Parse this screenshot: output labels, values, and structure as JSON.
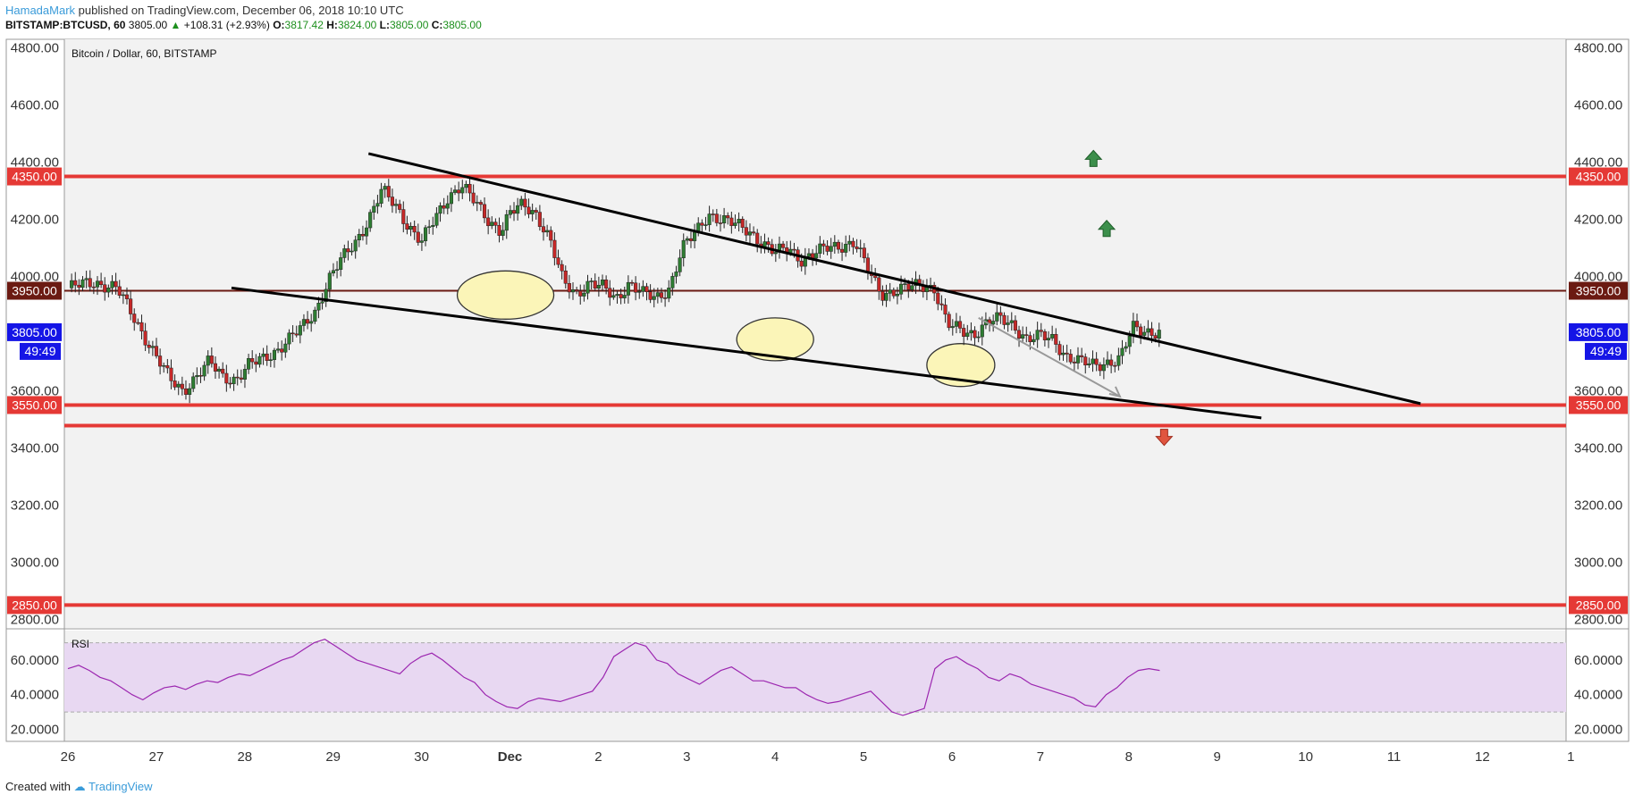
{
  "header": {
    "author": "HamadaMark",
    "published_text": "published on TradingView.com, December 06, 2018 10:10 UTC",
    "symbol": "BITSTAMP:BTCUSD, 60",
    "last": "3805.00",
    "change_arrow": "▲",
    "change": "+108.31 (+2.93%)",
    "o_label": "O:",
    "o_value": "3817.42",
    "h_label": "H:",
    "h_value": "3824.00",
    "l_label": "L:",
    "l_value": "3805.00",
    "c_label": "C:",
    "c_value": "3805.00"
  },
  "footer": {
    "created_with": "Created with",
    "brand": "TradingView"
  },
  "colors": {
    "bg": "#f2f2f2",
    "up": "#2e7d32",
    "down": "#c62828",
    "resistance": "#e53935",
    "level_3950": "#6b1a12",
    "current_price": "#1515e6",
    "rsi_line": "#9c27b0",
    "rsi_band": "#e8d8f2",
    "highlight": "#fbf5b8"
  },
  "chart_data": {
    "type": "candlestick",
    "title": "Bitcoin / Dollar, 60, BITSTAMP",
    "x_ticks": [
      "26",
      "27",
      "28",
      "29",
      "30",
      "Dec",
      "2",
      "3",
      "4",
      "5",
      "6",
      "7",
      "8",
      "9",
      "10",
      "11",
      "12",
      "1"
    ],
    "x_range_days": [
      0,
      17
    ],
    "y_ticks": [
      2800,
      3000,
      3200,
      3400,
      3600,
      3800,
      4000,
      4200,
      4400,
      4600,
      4800
    ],
    "y_tick_labels": [
      "2800.00",
      "3000.00",
      "3200.00",
      "3400.00",
      "3600.00",
      "3800.00",
      "4000.00",
      "4200.00",
      "4400.00",
      "4600.00",
      "4800.00"
    ],
    "ylim": [
      2770,
      4830
    ],
    "horizontal_levels": [
      {
        "price": 4350,
        "label": "4350.00",
        "color": "#e53935"
      },
      {
        "price": 3950,
        "label": "3950.00",
        "color": "#6b1a12"
      },
      {
        "price": 3550,
        "label": "3550.00",
        "color": "#e53935"
      },
      {
        "price": 3478,
        "label": "",
        "color": "#e53935"
      },
      {
        "price": 2850,
        "label": "2850.00",
        "color": "#e53935"
      }
    ],
    "current_price": {
      "price": 3805,
      "label": "3805.00",
      "countdown": "49:49"
    },
    "trendlines": [
      {
        "x": [
          3.4,
          15.3
        ],
        "y": [
          4430,
          3555
        ]
      },
      {
        "x": [
          1.85,
          13.5
        ],
        "y": [
          3960,
          3505
        ]
      }
    ],
    "projection_arrow": {
      "x": [
        10.3,
        11.9
      ],
      "y": [
        3855,
        3580
      ]
    },
    "highlight_ellipses": [
      {
        "x": 4.95,
        "y": 3935
      },
      {
        "x": 8.0,
        "y": 3780
      },
      {
        "x": 10.1,
        "y": 3690
      }
    ],
    "markers": [
      {
        "type": "up",
        "x": 11.6,
        "y": 4410
      },
      {
        "type": "up",
        "x": 11.75,
        "y": 4165
      },
      {
        "type": "down",
        "x": 12.4,
        "y": 3440
      }
    ],
    "close_path": [
      [
        0.0,
        3960
      ],
      [
        0.3,
        3980
      ],
      [
        0.55,
        3960
      ],
      [
        0.7,
        3880
      ],
      [
        0.85,
        3800
      ],
      [
        1.0,
        3720
      ],
      [
        1.15,
        3640
      ],
      [
        1.3,
        3600
      ],
      [
        1.45,
        3650
      ],
      [
        1.6,
        3700
      ],
      [
        1.75,
        3650
      ],
      [
        1.9,
        3640
      ],
      [
        2.05,
        3690
      ],
      [
        2.2,
        3710
      ],
      [
        2.35,
        3740
      ],
      [
        2.5,
        3780
      ],
      [
        2.65,
        3820
      ],
      [
        2.8,
        3880
      ],
      [
        2.95,
        3990
      ],
      [
        3.1,
        4060
      ],
      [
        3.25,
        4120
      ],
      [
        3.4,
        4200
      ],
      [
        3.55,
        4300
      ],
      [
        3.7,
        4250
      ],
      [
        3.85,
        4180
      ],
      [
        4.0,
        4120
      ],
      [
        4.15,
        4200
      ],
      [
        4.3,
        4280
      ],
      [
        4.45,
        4320
      ],
      [
        4.6,
        4260
      ],
      [
        4.75,
        4200
      ],
      [
        4.9,
        4160
      ],
      [
        5.0,
        4220
      ],
      [
        5.15,
        4250
      ],
      [
        5.3,
        4220
      ],
      [
        5.45,
        4130
      ],
      [
        5.6,
        3980
      ],
      [
        5.75,
        3940
      ],
      [
        5.9,
        3980
      ],
      [
        6.05,
        3960
      ],
      [
        6.2,
        3920
      ],
      [
        6.35,
        3980
      ],
      [
        6.5,
        3940
      ],
      [
        6.65,
        3920
      ],
      [
        6.8,
        3960
      ],
      [
        6.95,
        4100
      ],
      [
        7.1,
        4150
      ],
      [
        7.25,
        4220
      ],
      [
        7.4,
        4200
      ],
      [
        7.55,
        4180
      ],
      [
        7.7,
        4160
      ],
      [
        7.85,
        4120
      ],
      [
        8.0,
        4080
      ],
      [
        8.15,
        4100
      ],
      [
        8.3,
        4060
      ],
      [
        8.45,
        4080
      ],
      [
        8.6,
        4100
      ],
      [
        8.75,
        4110
      ],
      [
        8.9,
        4120
      ],
      [
        9.05,
        4020
      ],
      [
        9.2,
        3940
      ],
      [
        9.35,
        3950
      ],
      [
        9.5,
        3960
      ],
      [
        9.65,
        3970
      ],
      [
        9.8,
        3960
      ],
      [
        9.95,
        3830
      ],
      [
        10.1,
        3810
      ],
      [
        10.25,
        3800
      ],
      [
        10.4,
        3840
      ],
      [
        10.55,
        3850
      ],
      [
        10.7,
        3830
      ],
      [
        10.85,
        3780
      ],
      [
        11.0,
        3790
      ],
      [
        11.15,
        3780
      ],
      [
        11.3,
        3720
      ],
      [
        11.45,
        3700
      ],
      [
        11.6,
        3690
      ],
      [
        11.75,
        3700
      ],
      [
        11.9,
        3710
      ],
      [
        12.05,
        3820
      ],
      [
        12.2,
        3810
      ],
      [
        12.35,
        3805
      ]
    ],
    "rsi": {
      "label": "RSI",
      "y_ticks": [
        20,
        40,
        60
      ],
      "y_tick_labels": [
        "20.0000",
        "40.0000",
        "60.0000"
      ],
      "ylim": [
        13,
        77
      ],
      "band": [
        30,
        70
      ],
      "values": [
        55,
        57,
        54,
        50,
        48,
        44,
        40,
        37,
        41,
        44,
        45,
        43,
        46,
        48,
        47,
        50,
        52,
        51,
        54,
        57,
        60,
        62,
        66,
        70,
        72,
        68,
        64,
        60,
        58,
        56,
        54,
        52,
        58,
        62,
        64,
        60,
        55,
        50,
        47,
        40,
        36,
        33,
        32,
        36,
        38,
        37,
        36,
        38,
        40,
        42,
        50,
        62,
        66,
        70,
        68,
        60,
        58,
        52,
        49,
        46,
        50,
        54,
        56,
        52,
        48,
        48,
        46,
        44,
        44,
        40,
        37,
        35,
        36,
        38,
        40,
        42,
        36,
        30,
        28,
        30,
        32,
        55,
        60,
        62,
        58,
        55,
        50,
        48,
        52,
        50,
        46,
        44,
        42,
        40,
        38,
        34,
        33,
        40,
        44,
        50,
        54,
        55,
        54
      ]
    }
  }
}
